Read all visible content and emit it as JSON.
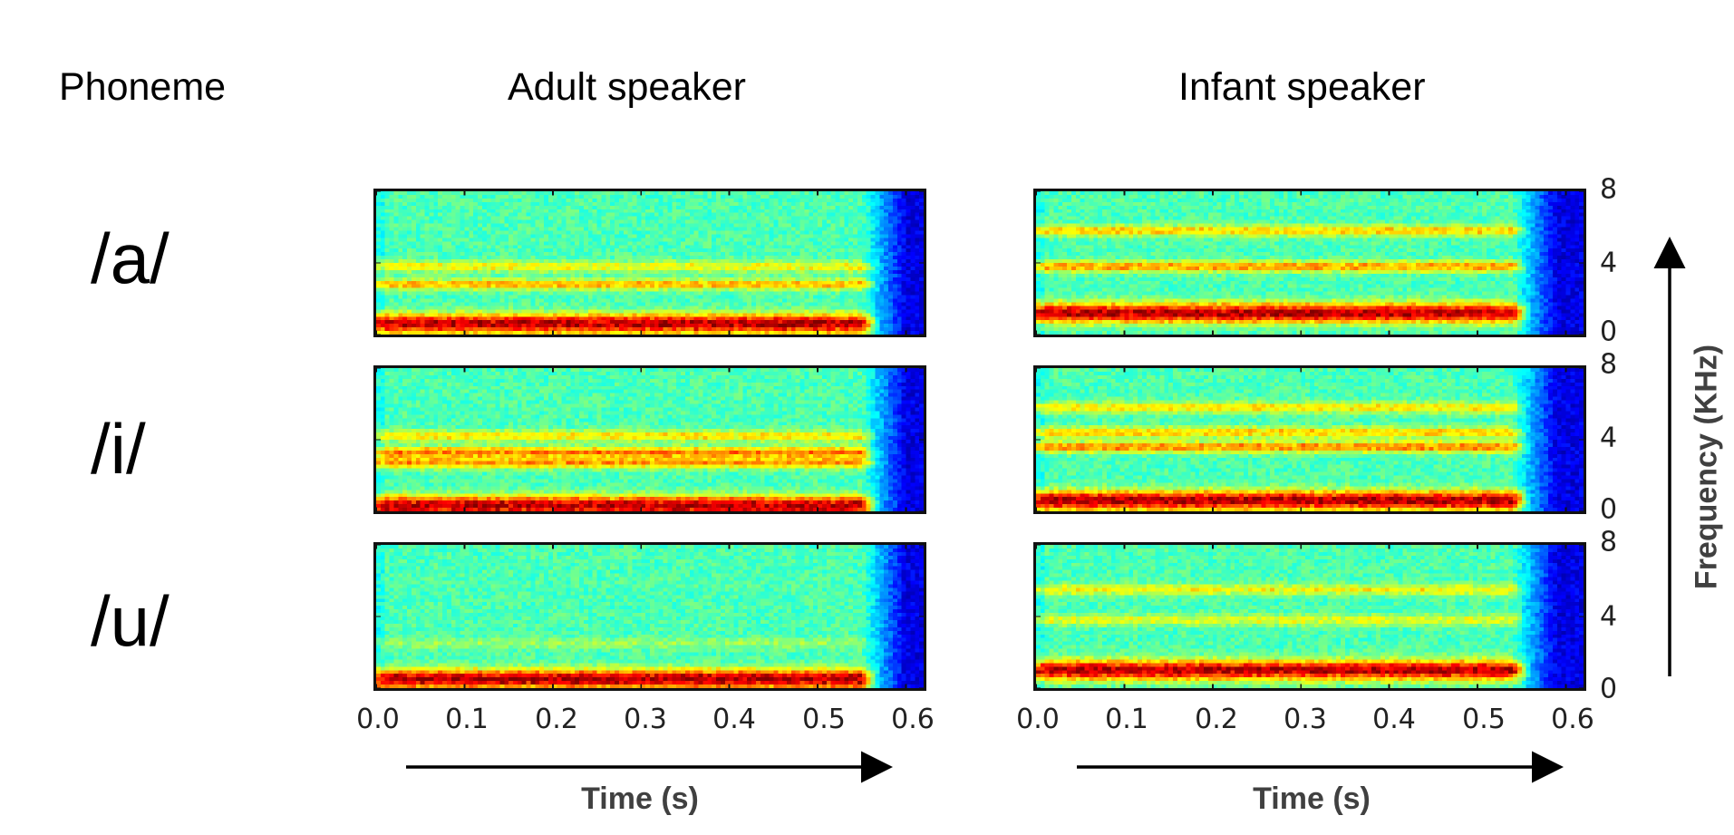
{
  "headers": {
    "phoneme": "Phoneme",
    "adult": "Adult speaker",
    "infant": "Infant speaker"
  },
  "phonemes": [
    "/a/",
    "/i/",
    "/u/"
  ],
  "chart_data": {
    "type": "heatmap",
    "title": "",
    "xlabel": "Time (s)",
    "ylabel": "Frequency (KHz)",
    "xlim": [
      0.0,
      0.62
    ],
    "ylim": [
      0,
      8
    ],
    "x_ticks": [
      "0.0",
      "0.1",
      "0.2",
      "0.3",
      "0.4",
      "0.5",
      "0.6"
    ],
    "y_ticks": [
      "8",
      "4",
      "0"
    ],
    "colormap": "jet",
    "colors": {
      "low": "#00008f",
      "mid": "#7fff7f",
      "high": "#800000"
    },
    "voicing_end_s": {
      "adult": 0.55,
      "infant": 0.54
    },
    "bands_khz": {
      "adult": {
        "/a/": [
          {
            "center": 0.6,
            "strength": 1.0
          },
          {
            "center": 2.8,
            "strength": 0.5
          },
          {
            "center": 3.8,
            "strength": 0.35
          }
        ],
        "/i/": [
          {
            "center": 0.3,
            "strength": 1.0
          },
          {
            "center": 2.7,
            "strength": 0.55
          },
          {
            "center": 3.3,
            "strength": 0.6
          },
          {
            "center": 4.2,
            "strength": 0.4
          }
        ],
        "/u/": [
          {
            "center": 0.5,
            "strength": 1.0
          },
          {
            "center": 2.5,
            "strength": 0.15
          }
        ]
      },
      "infant": {
        "/a/": [
          {
            "center": 1.2,
            "strength": 1.0
          },
          {
            "center": 3.8,
            "strength": 0.55
          },
          {
            "center": 5.8,
            "strength": 0.45
          }
        ],
        "/i/": [
          {
            "center": 0.6,
            "strength": 1.0
          },
          {
            "center": 3.6,
            "strength": 0.6
          },
          {
            "center": 4.4,
            "strength": 0.45
          },
          {
            "center": 5.8,
            "strength": 0.4
          }
        ],
        "/u/": [
          {
            "center": 1.0,
            "strength": 1.0
          },
          {
            "center": 3.8,
            "strength": 0.3
          },
          {
            "center": 5.5,
            "strength": 0.35
          }
        ]
      }
    }
  }
}
